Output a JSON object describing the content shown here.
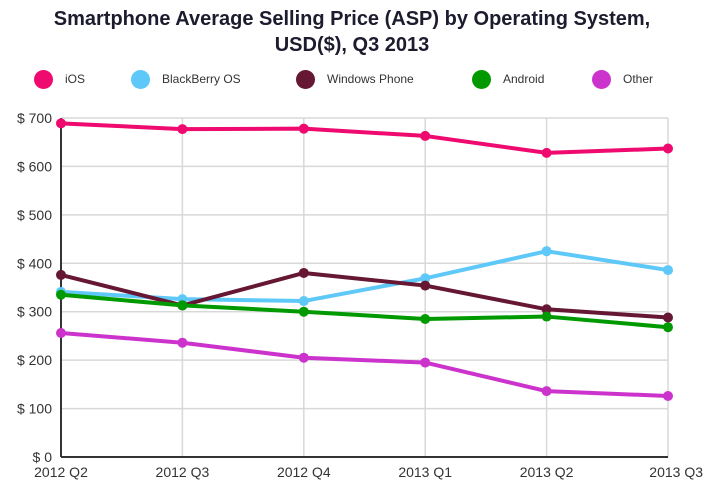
{
  "chart_data": {
    "type": "line",
    "title": "Smartphone Average Selling Price (ASP) by Operating System, USD($), Q3 2013",
    "title_lines": [
      "Smartphone Average Selling Price (ASP) by Operating System,",
      "USD($), Q3 2013"
    ],
    "xlabel": "",
    "ylabel": "",
    "categories": [
      "2012 Q2",
      "2012 Q3",
      "2012 Q4",
      "2013 Q1",
      "2013 Q2",
      "2013 Q3"
    ],
    "y_ticks": [
      0,
      100,
      200,
      300,
      400,
      500,
      600,
      700
    ],
    "y_tick_labels": [
      "$ 0",
      "$ 100",
      "$ 200",
      "$ 300",
      "$ 400",
      "$ 500",
      "$ 600",
      "$ 700"
    ],
    "ylim": [
      0,
      700
    ],
    "grid": true,
    "legend_position": "top",
    "series": [
      {
        "name": "iOS",
        "color": "#EE0A6E",
        "values": [
          689,
          677,
          678,
          663,
          628,
          637
        ]
      },
      {
        "name": "BlackBerry OS",
        "color": "#5EC8F8",
        "values": [
          341,
          326,
          322,
          369,
          425,
          386
        ]
      },
      {
        "name": "Windows Phone",
        "color": "#661734",
        "values": [
          376,
          313,
          380,
          354,
          305,
          288
        ]
      },
      {
        "name": "Android",
        "color": "#009A00",
        "values": [
          335,
          313,
          300,
          285,
          290,
          268
        ]
      },
      {
        "name": "Other",
        "color": "#CC33CC",
        "values": [
          256,
          236,
          205,
          195,
          136,
          126
        ]
      }
    ]
  }
}
